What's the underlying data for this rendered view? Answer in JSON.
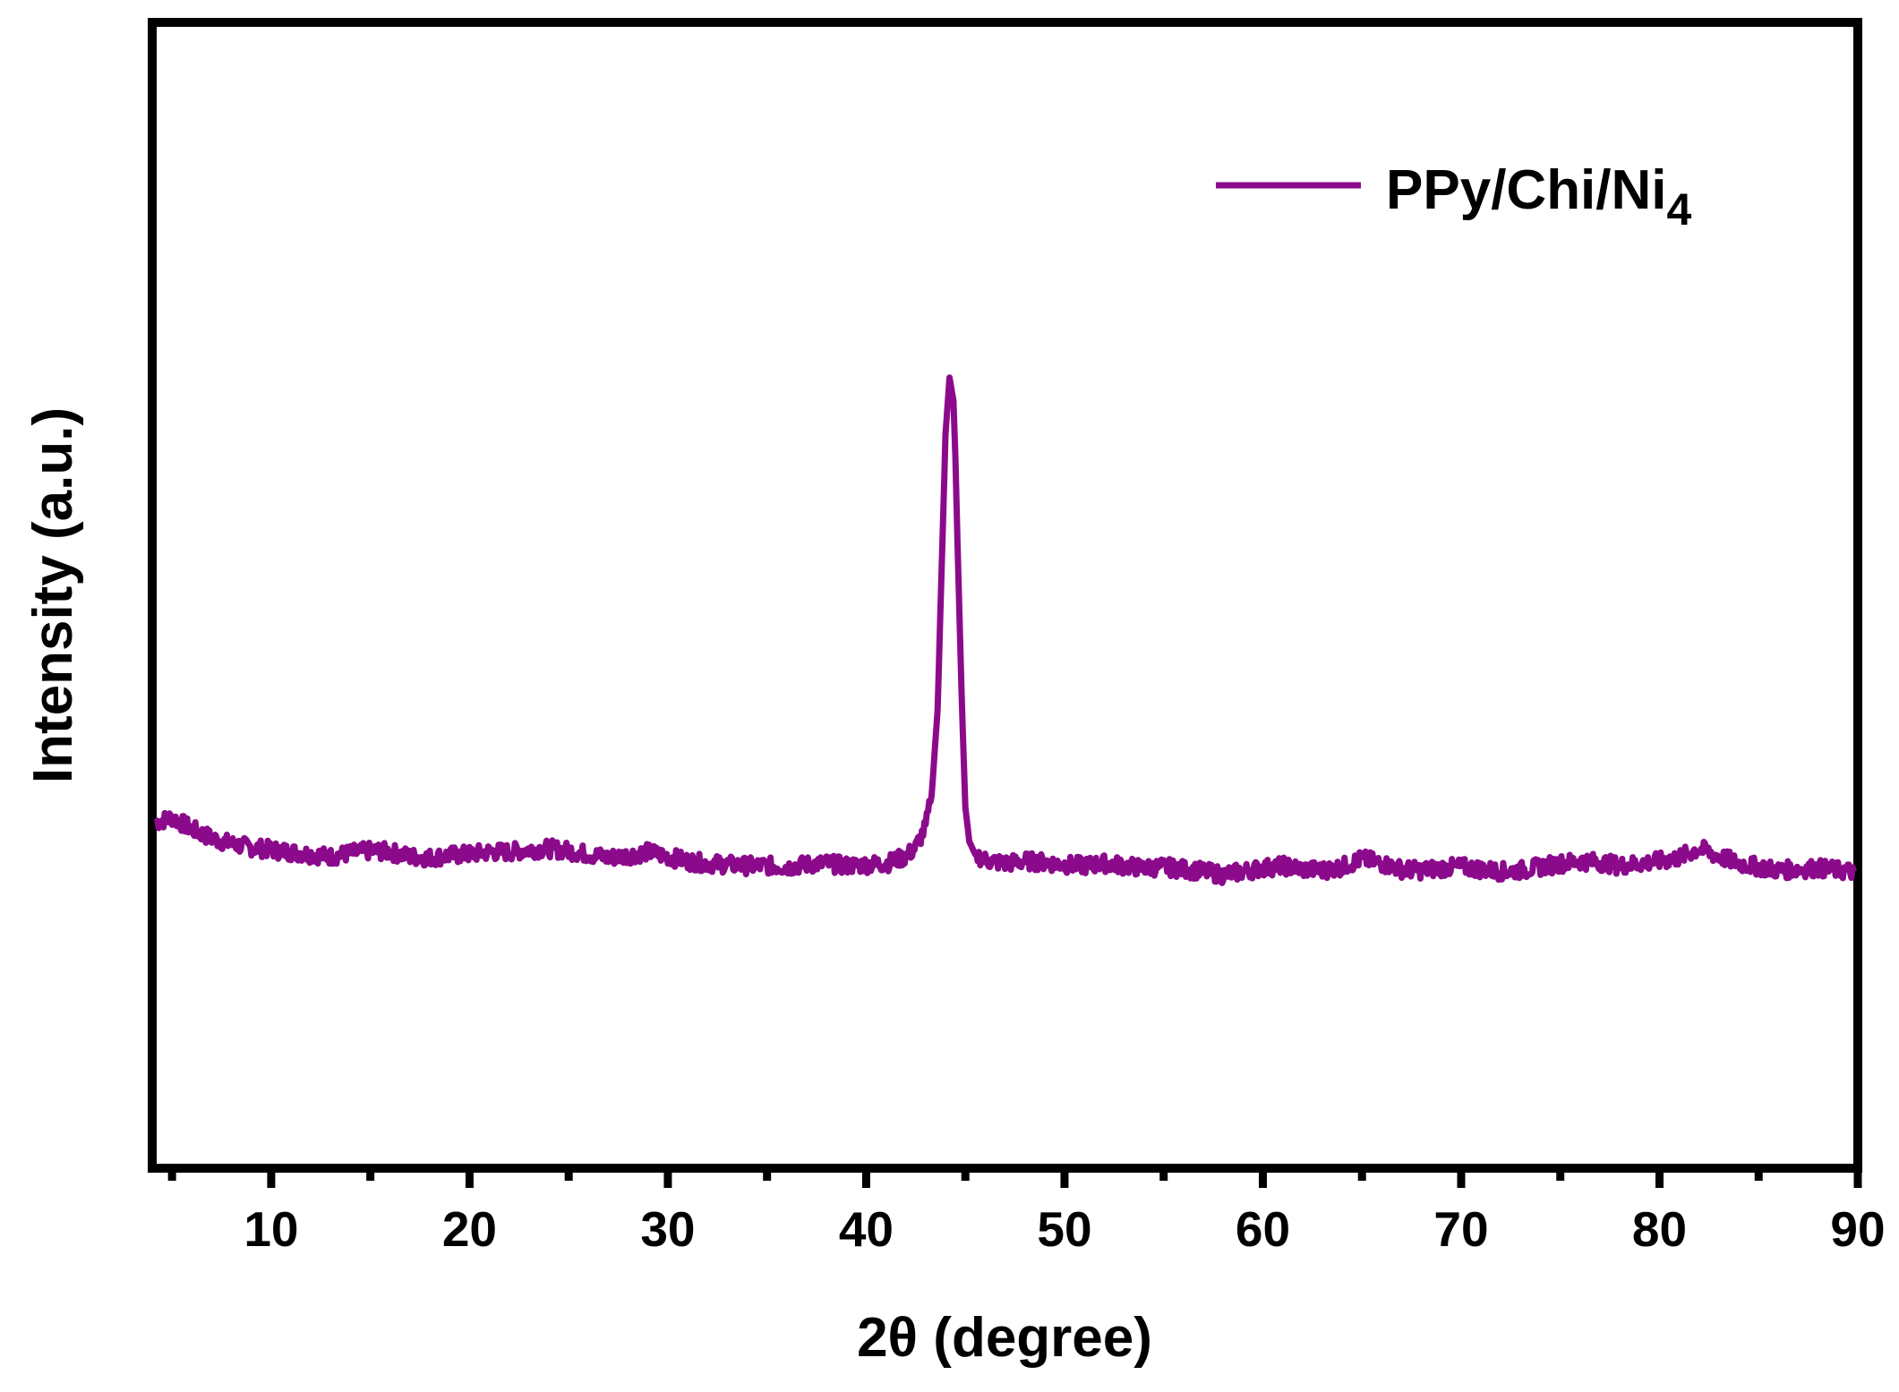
{
  "chart_data": {
    "type": "line",
    "xlabel": "2θ (degree)",
    "ylabel": "Intensity (a.u.)",
    "xlim": [
      4,
      90
    ],
    "ylim": [
      0,
      100
    ],
    "x_ticks": [
      10,
      20,
      30,
      40,
      50,
      60,
      70,
      80,
      90
    ],
    "x_tick_labels": [
      "10",
      "20",
      "30",
      "40",
      "50",
      "60",
      "70",
      "80",
      "90"
    ],
    "x_minor_ticks": [
      5,
      15,
      25,
      35,
      45,
      55,
      65,
      75,
      85
    ],
    "y_ticks_shown": false,
    "grid": false,
    "legend_position": "top-right",
    "series": [
      {
        "name": "PPy/Chi/Ni",
        "name_subscript": "4",
        "color": "#8B0A8B",
        "x": [
          4.2,
          5,
          6,
          7,
          8,
          9,
          10,
          11,
          12,
          13,
          14,
          15,
          16,
          17,
          18,
          19,
          20,
          21,
          22,
          23,
          24,
          25,
          26,
          27,
          28,
          29,
          30,
          31,
          32,
          33,
          34,
          35,
          36,
          37,
          38,
          39,
          40,
          41,
          42,
          42.5,
          43,
          43.3,
          43.6,
          43.8,
          44.0,
          44.2,
          44.4,
          44.5,
          44.6,
          44.8,
          45.0,
          45.2,
          45.5,
          46,
          47,
          48,
          49,
          50,
          51,
          52,
          53,
          54,
          55,
          56,
          57,
          58,
          59,
          60,
          61,
          62,
          63,
          64,
          65,
          66,
          67,
          68,
          69,
          70,
          71,
          72,
          73,
          74,
          75,
          76,
          77,
          78,
          79,
          80,
          81,
          82,
          83,
          84,
          85,
          86,
          87,
          88,
          89,
          89.8
        ],
        "y": [
          30.2,
          30.6,
          29.6,
          28.8,
          28.3,
          28.0,
          27.8,
          27.6,
          27.4,
          27.2,
          27.5,
          27.7,
          27.6,
          27.2,
          27.1,
          27.3,
          27.4,
          27.6,
          27.6,
          27.8,
          27.9,
          27.7,
          27.4,
          27.1,
          27.3,
          27.6,
          27.2,
          26.8,
          26.6,
          26.5,
          26.4,
          26.4,
          26.3,
          26.5,
          26.6,
          26.4,
          26.5,
          26.6,
          27.2,
          28.0,
          29.8,
          32.5,
          40.0,
          52.0,
          64.0,
          69.0,
          67.0,
          62.0,
          55.0,
          42.0,
          31.5,
          28.5,
          27.4,
          26.9,
          26.6,
          26.8,
          26.7,
          26.5,
          26.4,
          26.6,
          26.4,
          26.2,
          26.3,
          26.1,
          25.9,
          25.6,
          25.9,
          26.2,
          26.4,
          26.1,
          26.0,
          26.3,
          27.0,
          26.6,
          26.1,
          26.0,
          26.2,
          26.3,
          26.1,
          25.9,
          26.0,
          26.3,
          26.6,
          26.8,
          26.7,
          26.4,
          26.6,
          26.8,
          27.1,
          27.9,
          27.2,
          26.6,
          26.3,
          26.0,
          26.1,
          26.2,
          26.0,
          25.9
        ]
      }
    ]
  }
}
